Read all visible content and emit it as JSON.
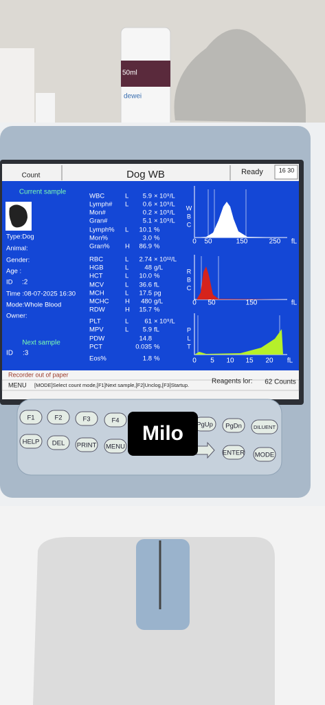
{
  "bottle": {
    "volume": "50ml",
    "brand": "dewei"
  },
  "header": {
    "mode": "Count",
    "title": "Dog WB",
    "status": "Ready",
    "time": "16 30"
  },
  "current_sample": {
    "title": "Current sample",
    "lines": [
      "Type:Dog",
      "Animal:",
      "Gender:",
      "Age :",
      "ID",
      "Time :08-07-2025 16:30",
      "Mode:Whole Blood",
      "Owner:"
    ],
    "id_value": ":2"
  },
  "next_sample": {
    "title": "Next sample",
    "id_label": "ID",
    "id_value": ":3"
  },
  "params": [
    {
      "name": "WBC",
      "flag": "L",
      "value": "5.9",
      "unit": "× 10⁹/L"
    },
    {
      "name": "Lymph#",
      "flag": "L",
      "value": "0.6",
      "unit": "× 10⁹/L"
    },
    {
      "name": "Mon#",
      "flag": "",
      "value": "0.2",
      "unit": "× 10⁹/L"
    },
    {
      "name": "Gran#",
      "flag": "",
      "value": "5.1",
      "unit": "× 10⁹/L"
    },
    {
      "name": "Lymph%",
      "flag": "L",
      "value": "10.1",
      "unit": "%"
    },
    {
      "name": "Mon%",
      "flag": "",
      "value": "3.0",
      "unit": "%"
    },
    {
      "name": "Gran%",
      "flag": "H",
      "value": "86.9",
      "unit": "%"
    },
    {
      "name": "RBC",
      "flag": "L",
      "value": "2.74",
      "unit": "× 10¹²/L"
    },
    {
      "name": "HGB",
      "flag": "L",
      "value": "48",
      "unit": "g/L"
    },
    {
      "name": "HCT",
      "flag": "L",
      "value": "10.0",
      "unit": "%"
    },
    {
      "name": "MCV",
      "flag": "L",
      "value": "36.6",
      "unit": "fL"
    },
    {
      "name": "MCH",
      "flag": "L",
      "value": "17.5",
      "unit": "pg"
    },
    {
      "name": "MCHC",
      "flag": "H",
      "value": "480",
      "unit": "g/L"
    },
    {
      "name": "RDW",
      "flag": "H",
      "value": "15.7",
      "unit": "%"
    },
    {
      "name": "PLT",
      "flag": "L",
      "value": "61",
      "unit": "× 10⁹/L"
    },
    {
      "name": "MPV",
      "flag": "L",
      "value": "5.9",
      "unit": "fL"
    },
    {
      "name": "PDW",
      "flag": "",
      "value": "14.8",
      "unit": ""
    },
    {
      "name": "PCT",
      "flag": "",
      "value": "0.035",
      "unit": "%"
    },
    {
      "name": "Eos%",
      "flag": "",
      "value": "1.8",
      "unit": "%"
    }
  ],
  "histograms": [
    {
      "letters": [
        "W",
        "B",
        "C"
      ],
      "axis": [
        "0",
        "50",
        "150",
        "250",
        "fL"
      ]
    },
    {
      "letters": [
        "R",
        "B",
        "C"
      ],
      "axis": [
        "0",
        "50",
        "150",
        "fL"
      ]
    },
    {
      "letters": [
        "P",
        "L",
        "T"
      ],
      "axis": [
        "0",
        "5",
        "10",
        "15",
        "20",
        "fL"
      ]
    }
  ],
  "status": {
    "message": "Recorder out of paper",
    "reagents_label": "Reagents lor:",
    "reagents_value": "62 Counts"
  },
  "menu": {
    "label": "MENU",
    "hint": "[MODE]Select count mode,[F1]Next sample,[F2]Unclog,[F3]Startup."
  },
  "keys": [
    "F1",
    "F2",
    "F3",
    "F4",
    "PgUp",
    "PgDn",
    "DILUENT",
    "HELP",
    "DEL",
    "PRINT",
    "MENU",
    "ENTER",
    "MODE"
  ],
  "overlay": "Milo"
}
